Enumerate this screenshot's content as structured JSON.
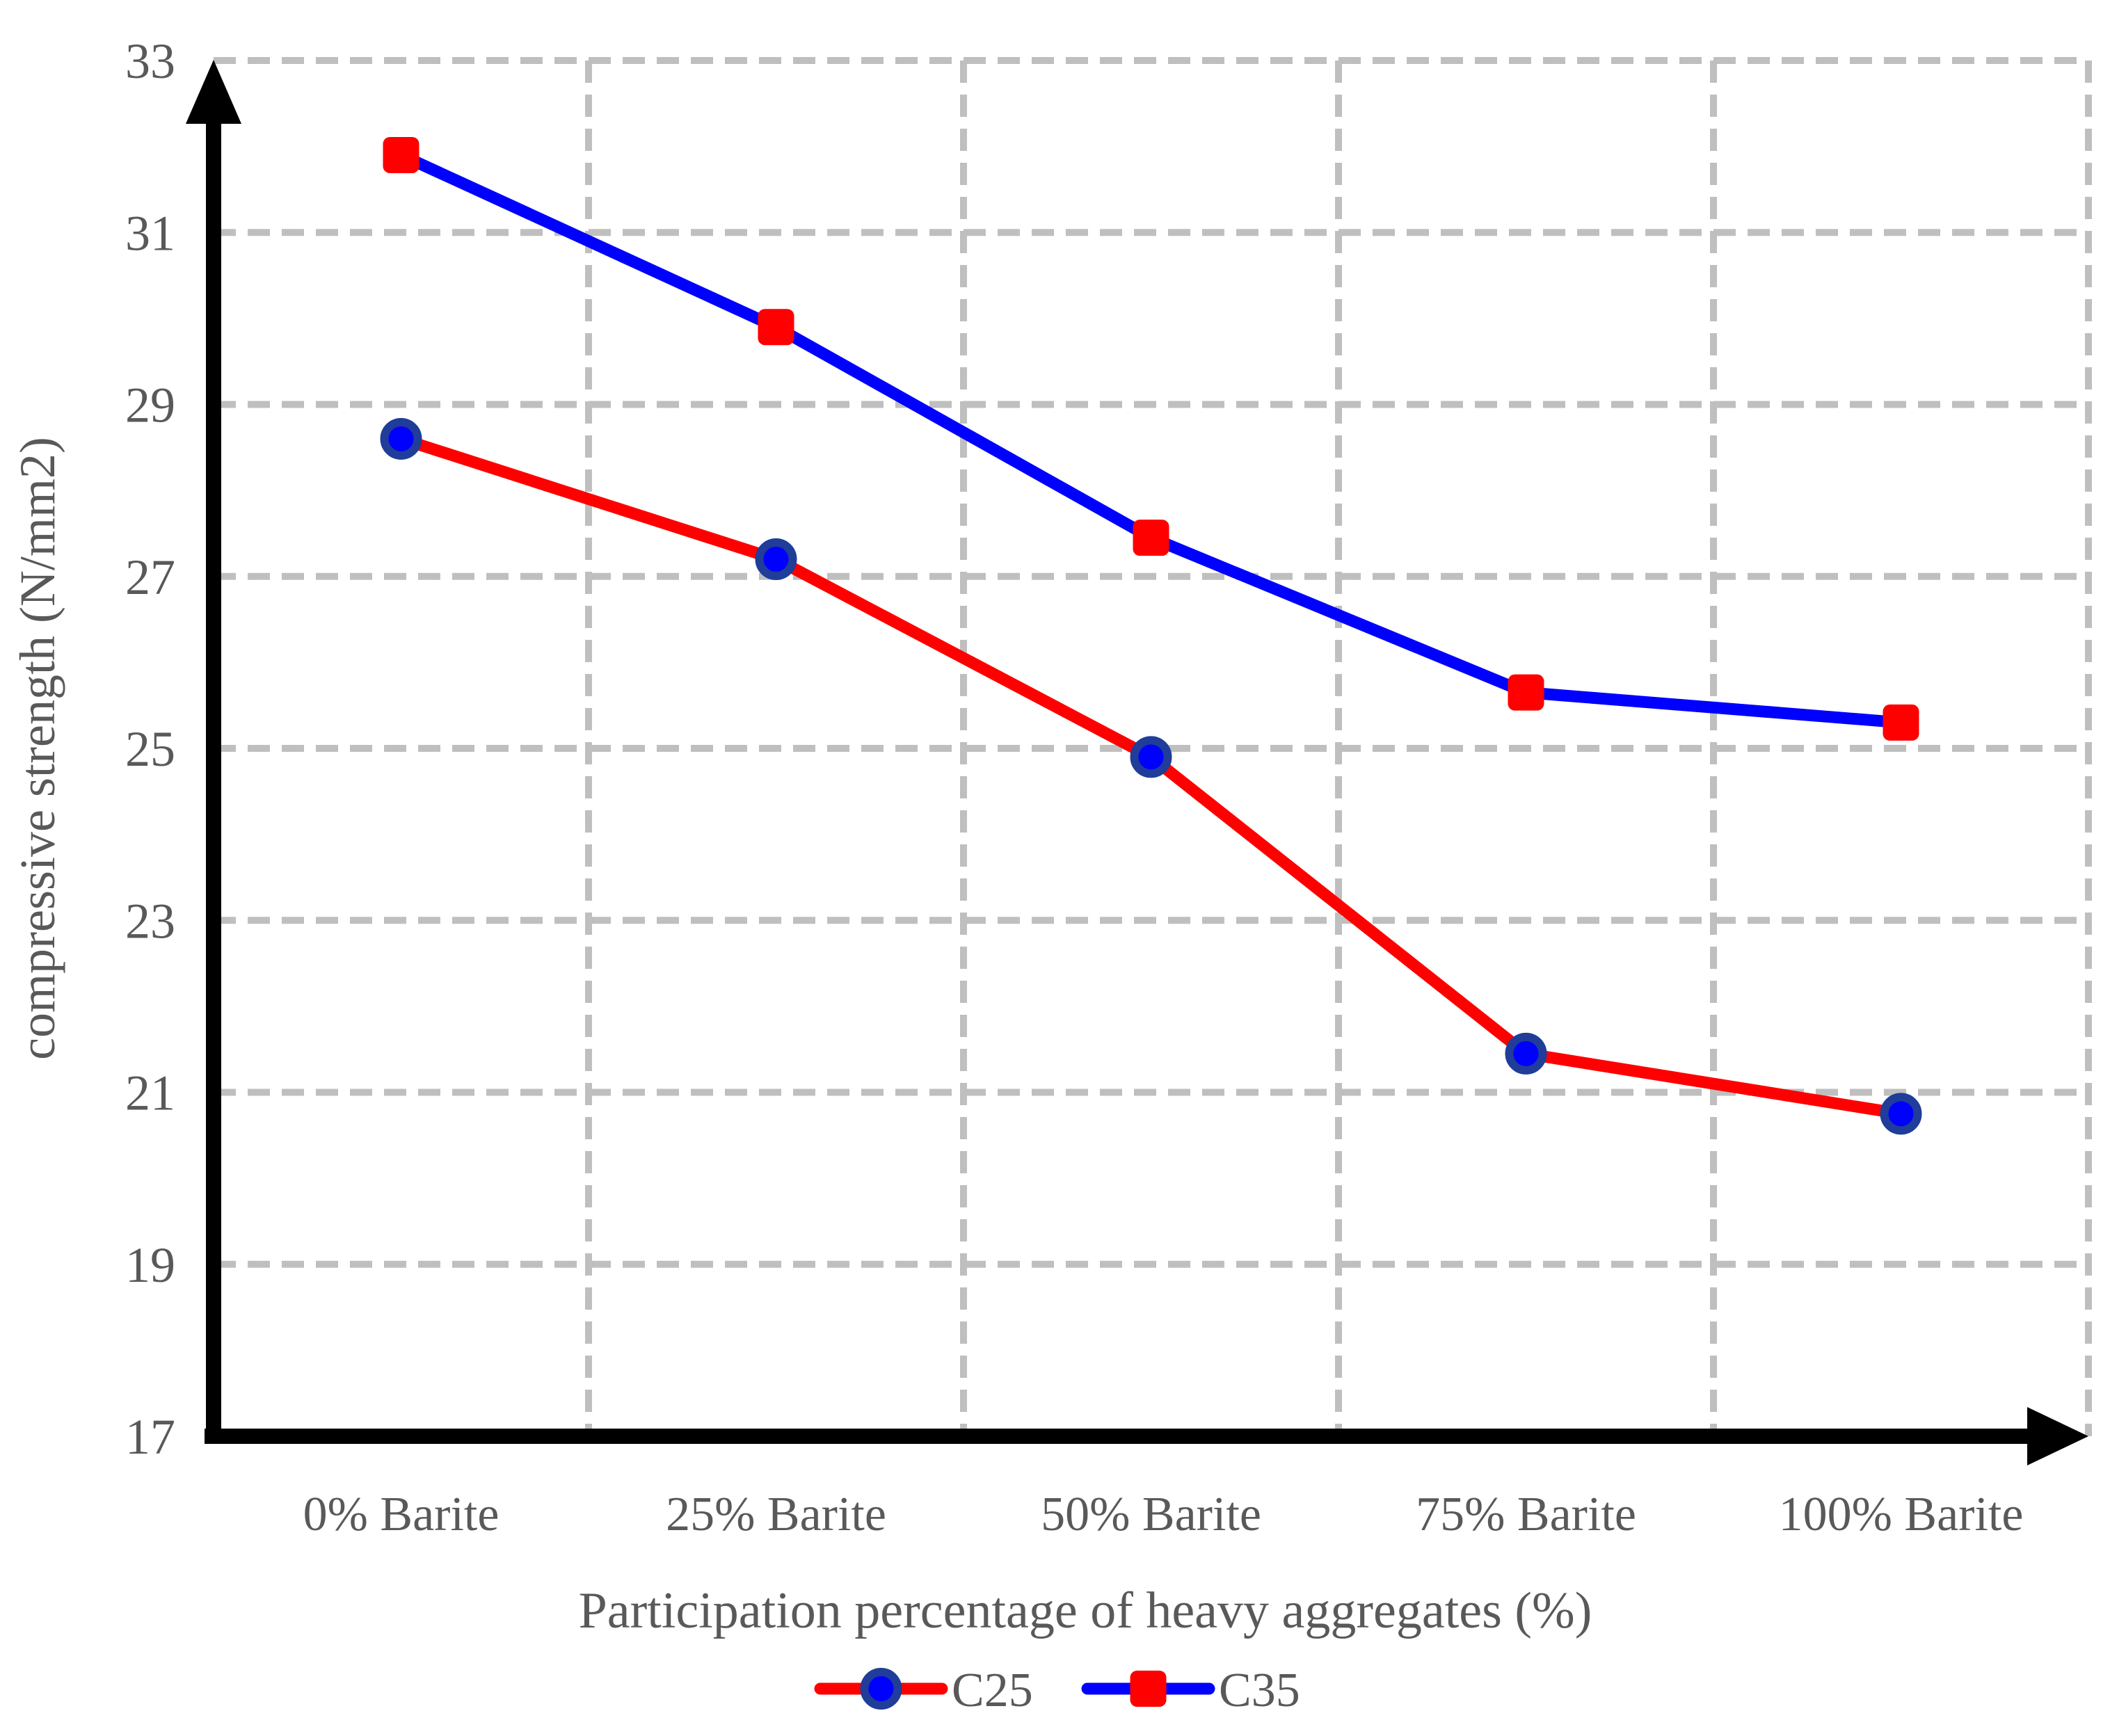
{
  "chart_data": {
    "type": "line",
    "categories": [
      "0% Barite",
      "25% Barite",
      "50% Barite",
      "75% Barite",
      "100% Barite"
    ],
    "series": [
      {
        "name": "C25",
        "line_color": "#FF0000",
        "marker": "circle",
        "marker_fill": "#0000FF",
        "marker_stroke": "#1F3D99",
        "values": [
          28.6,
          27.2,
          24.9,
          21.45,
          20.75
        ]
      },
      {
        "name": "C35",
        "line_color": "#0000FF",
        "marker": "square",
        "marker_fill": "#FF0000",
        "marker_stroke": "#FF0000",
        "values": [
          31.9,
          29.9,
          27.45,
          25.65,
          25.3
        ]
      }
    ],
    "xlabel": "Participation percentage of heavy aggregates (%)",
    "ylabel": "compressive strength (N/mm2)",
    "ylim": [
      17,
      33
    ],
    "yticks": [
      17,
      19,
      21,
      23,
      25,
      27,
      29,
      31,
      33
    ],
    "grid": "dashed",
    "legend_position": "bottom",
    "colors": {
      "grid": "#BFBFBF",
      "axis": "#000000",
      "text": "#595959",
      "background": "#FFFFFF"
    }
  }
}
